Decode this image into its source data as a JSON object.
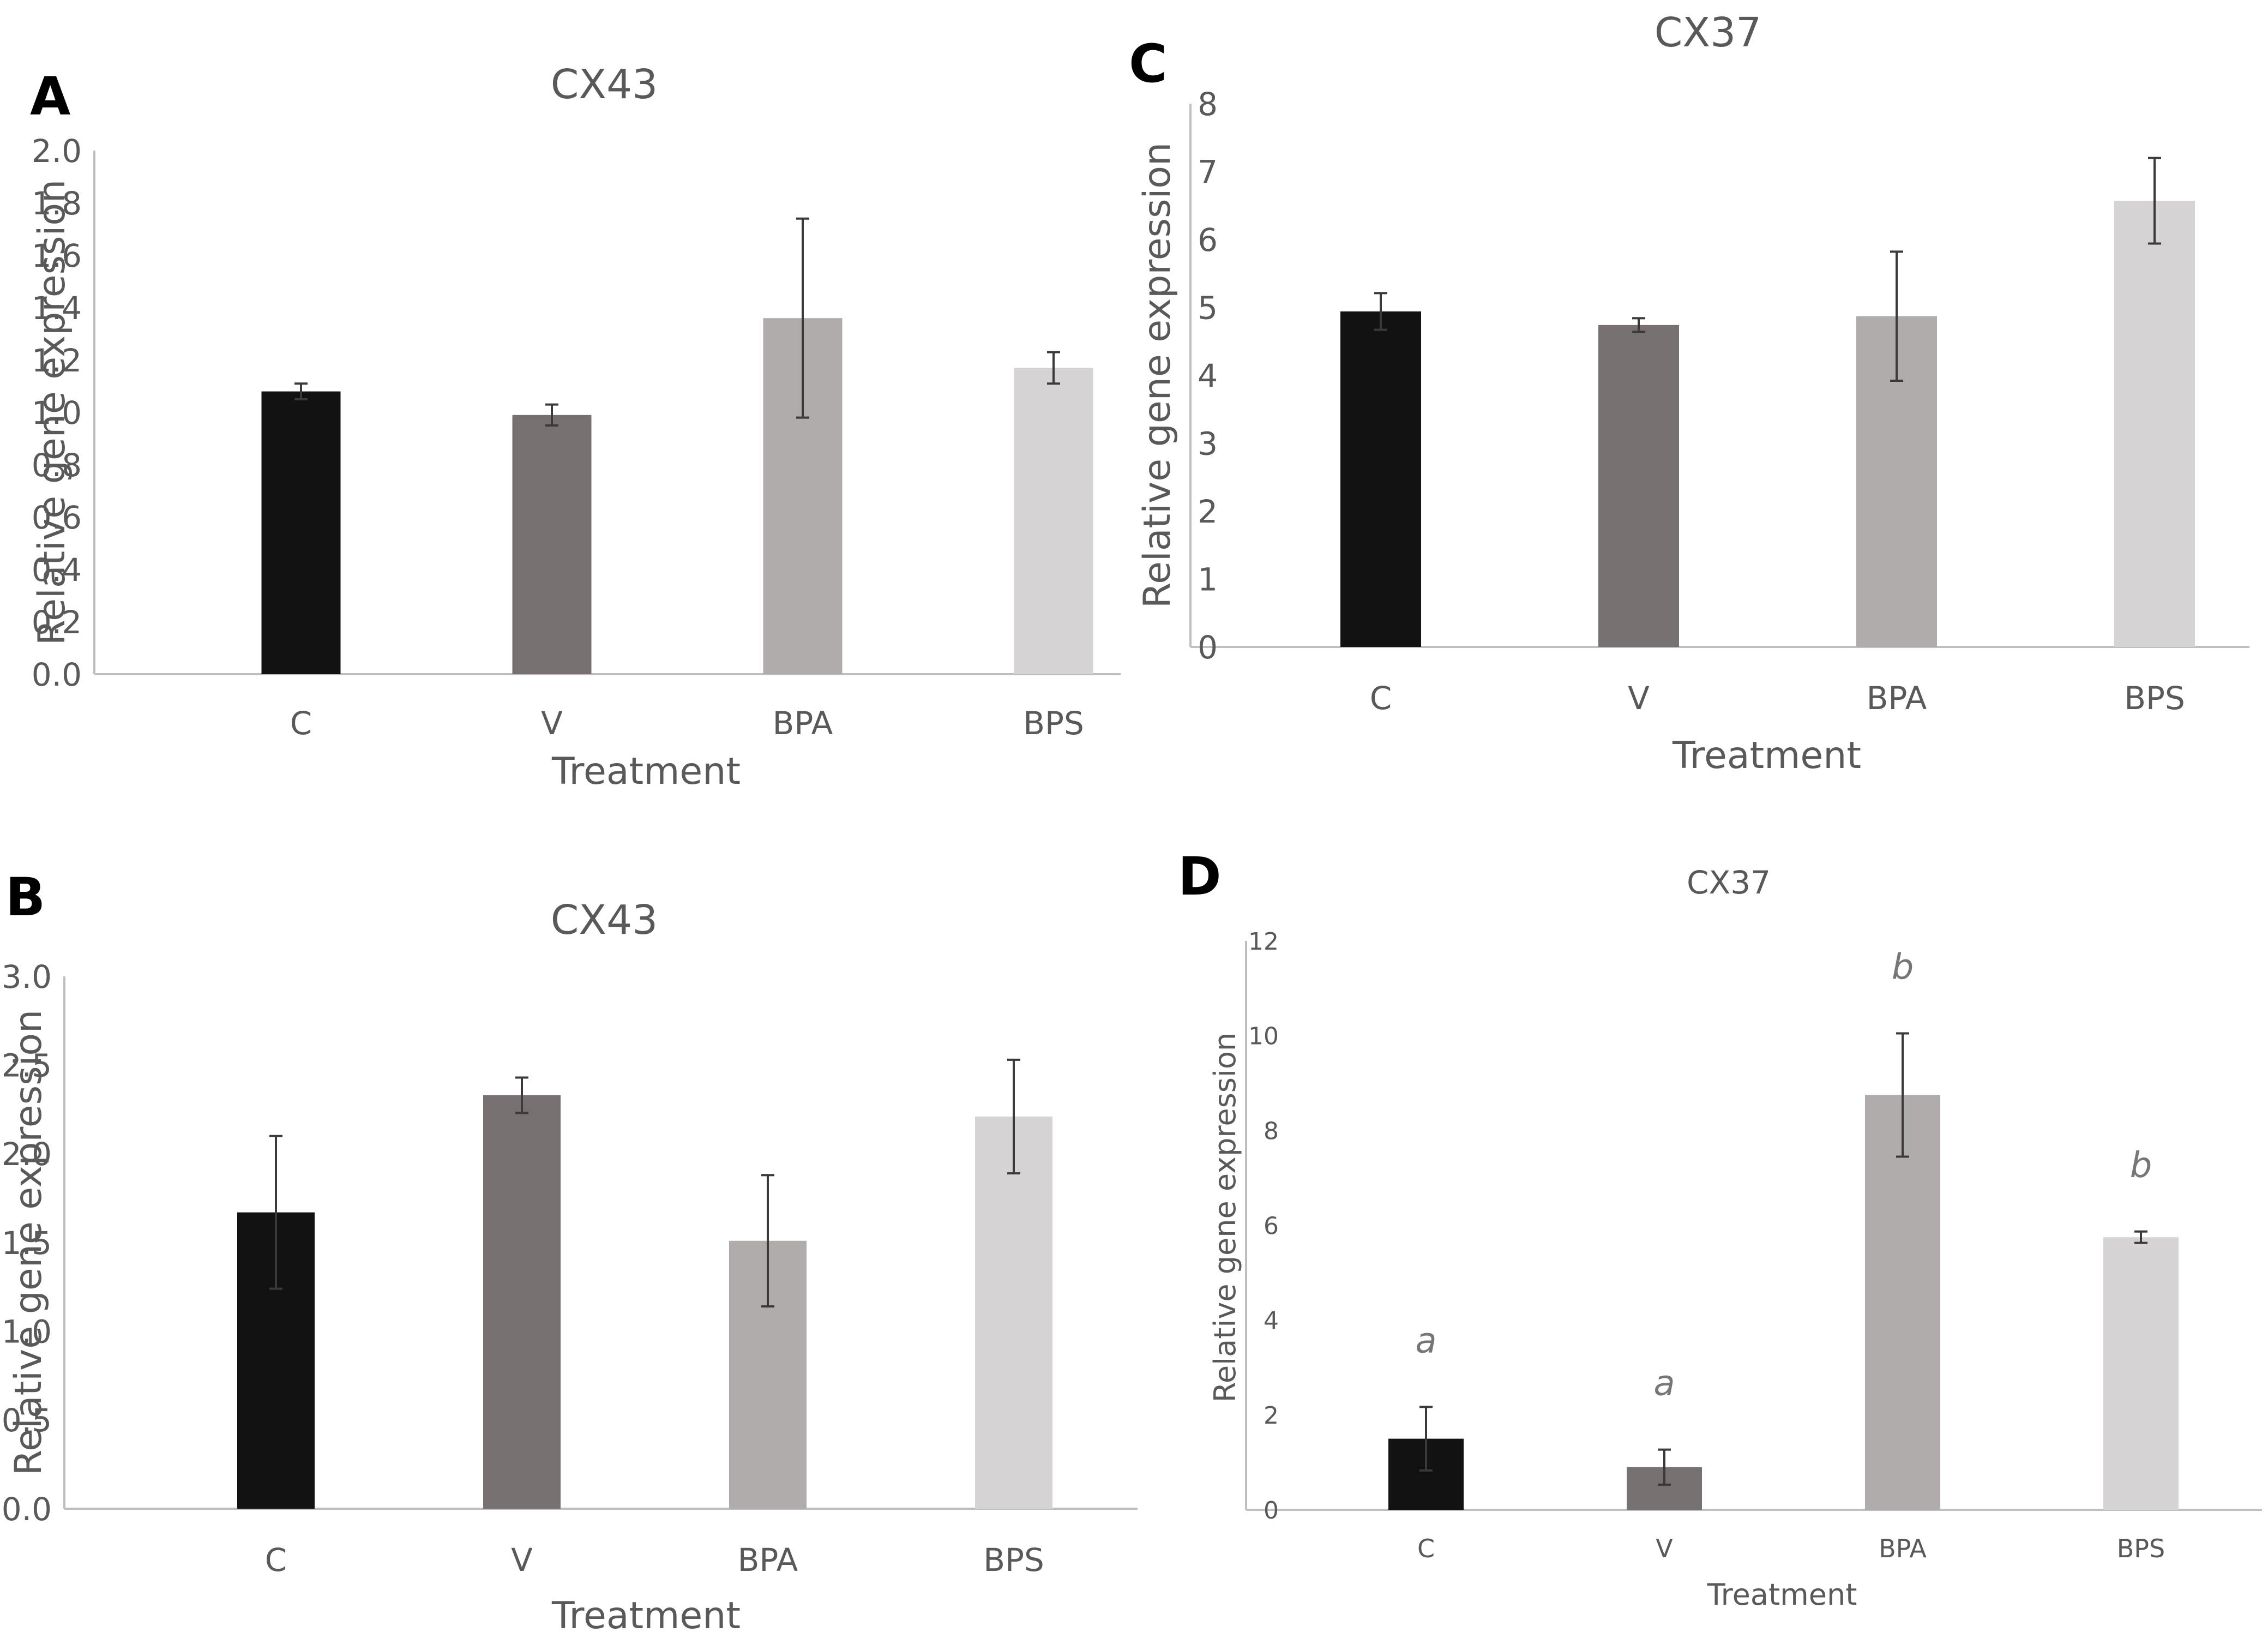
{
  "colors": {
    "C": "#121212",
    "V": "#767170",
    "BPA": "#afacab",
    "BPS": "#d5d3d4",
    "axis": "#bfbfbf",
    "text": "#595959",
    "error_bar": "#3a3a3a"
  },
  "chart_data": [
    {
      "panel": "A",
      "type": "bar",
      "title": "CX43",
      "xlabel": "Treatment",
      "ylabel": "Relative gene expression",
      "categories": [
        "C",
        "V",
        "BPA",
        "BPS"
      ],
      "values": [
        1.08,
        0.99,
        1.36,
        1.17
      ],
      "errors": [
        0.03,
        0.04,
        0.38,
        0.06
      ],
      "ylim": [
        0,
        2.0
      ],
      "yticks": [
        "0.0",
        "0.2",
        "0.4",
        "0.6",
        "0.8",
        "1.0",
        "1.2",
        "1.4",
        "1.6",
        "1.8",
        "2.0"
      ],
      "annotations": []
    },
    {
      "panel": "B",
      "type": "bar",
      "title": "CX43",
      "xlabel": "Treatment",
      "ylabel": "Relative gene expression",
      "categories": [
        "C",
        "V",
        "BPA",
        "BPS"
      ],
      "values": [
        1.67,
        2.33,
        1.51,
        2.21
      ],
      "errors": [
        0.43,
        0.1,
        0.37,
        0.32
      ],
      "ylim": [
        0,
        3.0
      ],
      "yticks": [
        "0.0",
        "0.5",
        "1.0",
        "1.5",
        "2.0",
        "2.5",
        "3.0"
      ],
      "annotations": []
    },
    {
      "panel": "C",
      "type": "bar",
      "title": "CX37",
      "xlabel": "Treatment",
      "ylabel": "Relative gene expression",
      "categories": [
        "C",
        "V",
        "BPA",
        "BPS"
      ],
      "values": [
        4.94,
        4.74,
        4.87,
        6.57
      ],
      "errors": [
        0.27,
        0.1,
        0.95,
        0.63
      ],
      "ylim": [
        0,
        8
      ],
      "yticks": [
        "0",
        "1",
        "2",
        "3",
        "4",
        "5",
        "6",
        "7",
        "8"
      ],
      "annotations": []
    },
    {
      "panel": "D",
      "type": "bar",
      "title": "CX37",
      "xlabel": "Treatment",
      "ylabel": "Relative gene expression",
      "categories": [
        "C",
        "V",
        "BPA",
        "BPS"
      ],
      "values": [
        1.5,
        0.9,
        8.75,
        5.75
      ],
      "errors": [
        0.67,
        0.37,
        1.3,
        0.12
      ],
      "ylim": [
        0,
        12
      ],
      "yticks": [
        "0",
        "2",
        "4",
        "6",
        "8",
        "10",
        "12"
      ],
      "annotations": [
        "a",
        "a",
        "b",
        "b"
      ]
    }
  ]
}
